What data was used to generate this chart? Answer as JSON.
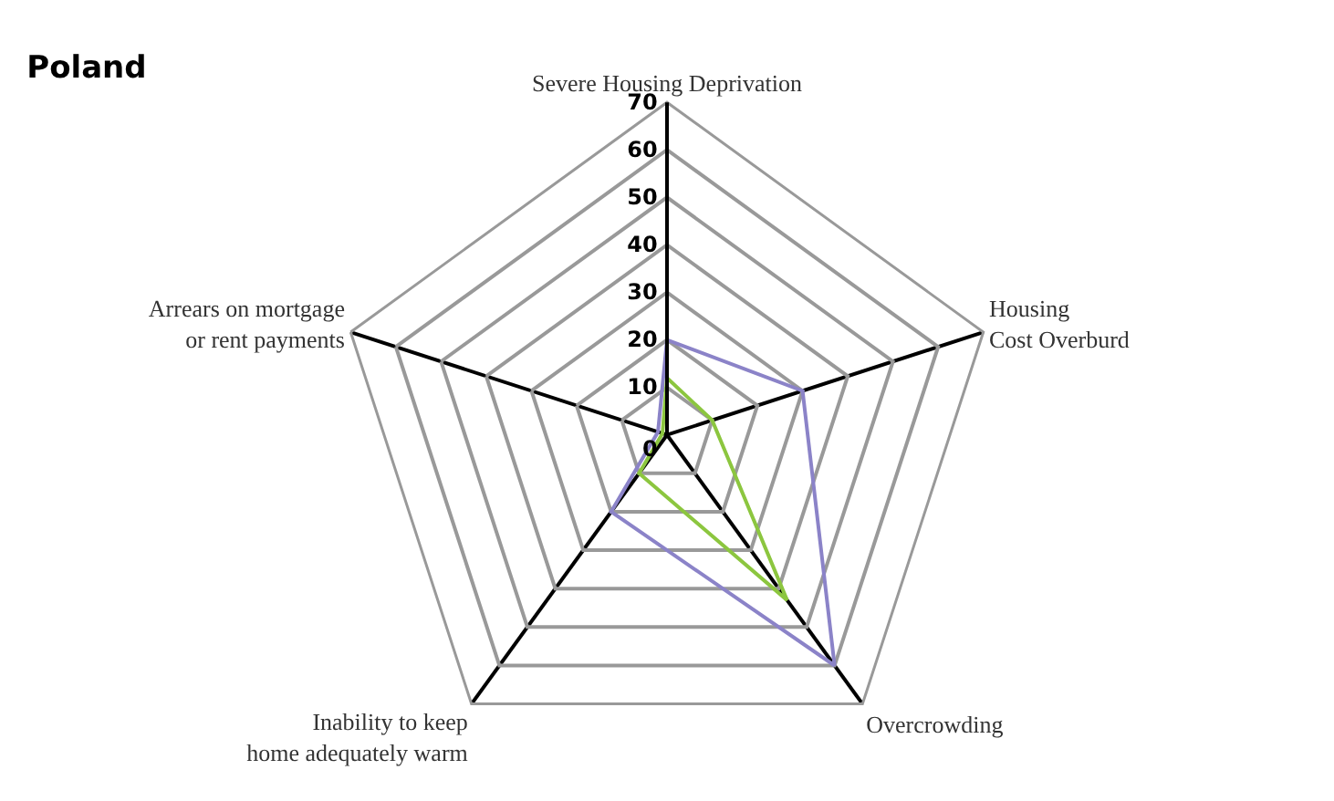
{
  "chart_data": {
    "type": "radar",
    "title": "Poland",
    "categories": [
      "Severe Housing Deprivation",
      "Housing\nCost Overburd",
      "Overcrowding",
      "Inability to keep\nhome adequately warm",
      "Arrears on mortgage\nor rent payments"
    ],
    "series": [
      {
        "color": "#8b83c8",
        "values": [
          20,
          30,
          60,
          20,
          2
        ]
      },
      {
        "color": "#8cc63f",
        "values": [
          12,
          10,
          43,
          10,
          1
        ]
      }
    ],
    "ylim": [
      0,
      70
    ],
    "yticks": [
      0,
      10,
      20,
      30,
      40,
      50,
      60,
      70
    ],
    "grid": true,
    "marker": "none"
  }
}
